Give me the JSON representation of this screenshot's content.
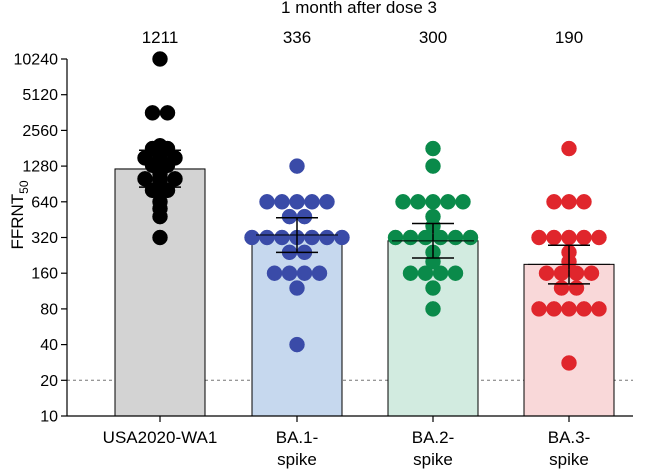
{
  "chart_data": {
    "type": "bar",
    "title": "1 month after dose 3",
    "ylabel": "FFRNT",
    "ylabel_sub": "50",
    "yscale": "log2",
    "ylim": [
      10,
      10240
    ],
    "yticks": [
      10,
      20,
      40,
      80,
      160,
      320,
      640,
      1280,
      2560,
      5120,
      10240
    ],
    "reference_line": 20,
    "categories": [
      {
        "line1": "USA2020-WA1",
        "line2": ""
      },
      {
        "line1": "BA.1-",
        "line2": "spike"
      },
      {
        "line1": "BA.2-",
        "line2": "spike"
      },
      {
        "line1": "BA.3-",
        "line2": "spike"
      }
    ],
    "gmt_labels": [
      "1211",
      "336",
      "300",
      "190"
    ],
    "values": [
      1211,
      336,
      300,
      190
    ],
    "error_bars": [
      [
        850,
        1740
      ],
      [
        240,
        470
      ],
      [
        215,
        420
      ],
      [
        130,
        275
      ]
    ],
    "bar_fill": [
      "#d3d3d3",
      "#c6d8ee",
      "#d2ebe0",
      "#f9d8d9"
    ],
    "point_color": [
      "#000000",
      "#3a4ba8",
      "#0a8a4a",
      "#e0262c"
    ],
    "points": [
      [
        10240,
        3600,
        3600,
        1900,
        1800,
        1800,
        1500,
        1500,
        1500,
        1300,
        1300,
        1280,
        1100,
        1000,
        1000,
        1000,
        950,
        850,
        800,
        800,
        640,
        560,
        480,
        320
      ],
      [
        1280,
        640,
        640,
        640,
        640,
        640,
        480,
        480,
        320,
        320,
        320,
        320,
        320,
        320,
        320,
        240,
        240,
        160,
        160,
        160,
        160,
        120,
        40
      ],
      [
        1800,
        1280,
        640,
        640,
        640,
        640,
        640,
        480,
        400,
        320,
        320,
        320,
        320,
        320,
        320,
        240,
        200,
        160,
        160,
        160,
        160,
        120,
        80
      ],
      [
        1800,
        640,
        640,
        640,
        320,
        320,
        320,
        320,
        320,
        240,
        200,
        160,
        160,
        160,
        160,
        120,
        120,
        80,
        80,
        80,
        80,
        80,
        28
      ]
    ]
  }
}
